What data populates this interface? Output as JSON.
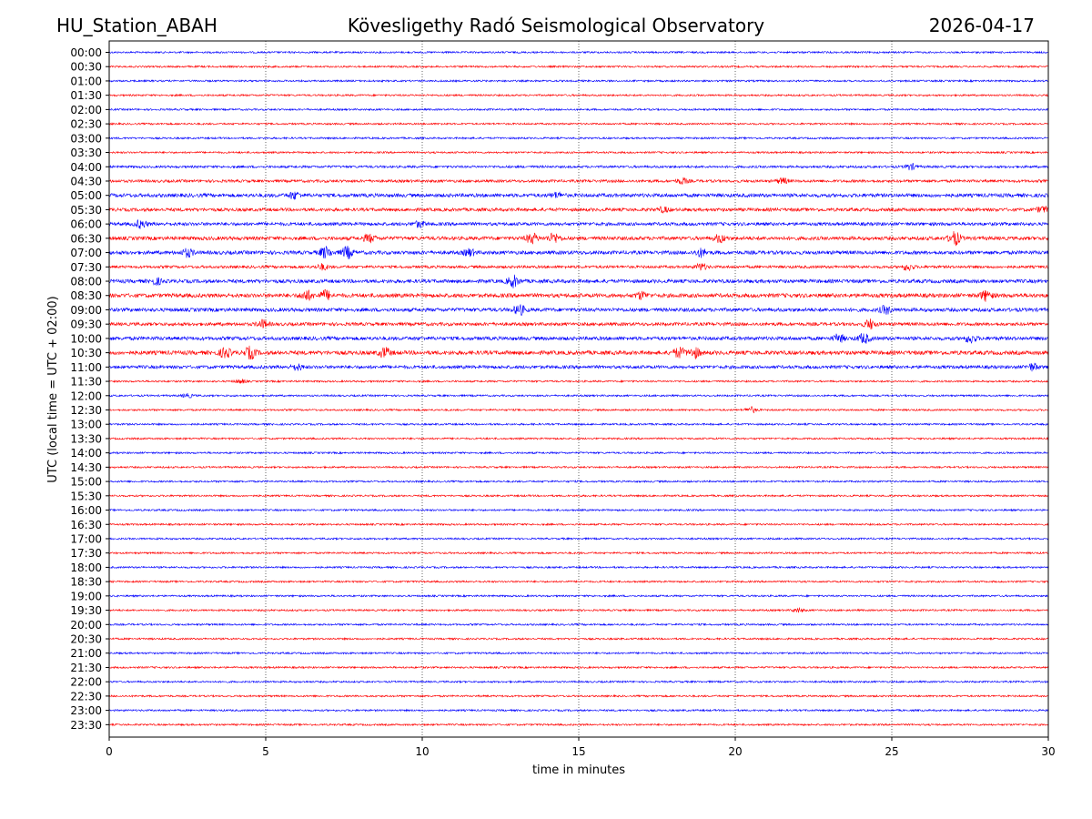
{
  "header": {
    "station": "HU_Station_ABAH",
    "observatory": "Kövesligethy Radó Seismological Observatory",
    "date": "2026-04-17"
  },
  "chart_data": {
    "type": "line",
    "title": "Kövesligethy Radó Seismological Observatory",
    "xlabel": "time in minutes",
    "ylabel": "UTC (local time = UTC + 02:00)",
    "xlim": [
      0,
      30
    ],
    "xticks": [
      0,
      5,
      10,
      15,
      20,
      25,
      30
    ],
    "grid_x": [
      5,
      10,
      15,
      20,
      25
    ],
    "colors": [
      "#0000ff",
      "#ff0000"
    ],
    "rows": [
      "00:00",
      "00:30",
      "01:00",
      "01:30",
      "02:00",
      "02:30",
      "03:00",
      "03:30",
      "04:00",
      "04:30",
      "05:00",
      "05:30",
      "06:00",
      "06:30",
      "07:00",
      "07:30",
      "08:00",
      "08:30",
      "09:00",
      "09:30",
      "10:00",
      "10:30",
      "11:00",
      "11:30",
      "12:00",
      "12:30",
      "13:00",
      "13:30",
      "14:00",
      "14:30",
      "15:00",
      "15:30",
      "16:00",
      "16:30",
      "17:00",
      "17:30",
      "18:00",
      "18:30",
      "19:00",
      "19:30",
      "20:00",
      "20:30",
      "21:00",
      "21:30",
      "22:00",
      "22:30",
      "23:00",
      "23:30"
    ],
    "noise_amplitude": [
      1,
      1,
      1,
      1,
      1,
      1,
      1,
      1,
      1.3,
      1.5,
      2,
      1.8,
      1.8,
      2,
      2,
      1.5,
      2,
      2.2,
      2,
      1.8,
      2,
      2.2,
      1.8,
      1,
      1,
      1,
      1,
      1,
      1,
      1,
      1,
      1,
      1,
      1,
      1,
      1,
      1,
      1,
      1,
      1,
      1,
      1,
      1,
      1,
      1,
      1,
      1,
      1
    ],
    "bursts": [
      {
        "row": "04:00",
        "minute": 25.6,
        "amp": 3
      },
      {
        "row": "04:30",
        "minute": 18.3,
        "amp": 3
      },
      {
        "row": "04:30",
        "minute": 21.5,
        "amp": 3
      },
      {
        "row": "05:00",
        "minute": 5.9,
        "amp": 3.5
      },
      {
        "row": "05:00",
        "minute": 14.3,
        "amp": 2.5
      },
      {
        "row": "05:30",
        "minute": 17.7,
        "amp": 2.5
      },
      {
        "row": "05:30",
        "minute": 29.8,
        "amp": 3
      },
      {
        "row": "06:00",
        "minute": 1,
        "amp": 4
      },
      {
        "row": "06:00",
        "minute": 9.9,
        "amp": 3
      },
      {
        "row": "06:30",
        "minute": 8.3,
        "amp": 4
      },
      {
        "row": "06:30",
        "minute": 13.5,
        "amp": 5
      },
      {
        "row": "06:30",
        "minute": 14.2,
        "amp": 5
      },
      {
        "row": "06:30",
        "minute": 19.5,
        "amp": 4
      },
      {
        "row": "06:30",
        "minute": 27,
        "amp": 7
      },
      {
        "row": "07:00",
        "minute": 2.5,
        "amp": 4
      },
      {
        "row": "07:00",
        "minute": 6.9,
        "amp": 6
      },
      {
        "row": "07:00",
        "minute": 7.6,
        "amp": 6
      },
      {
        "row": "07:00",
        "minute": 11.5,
        "amp": 3.5
      },
      {
        "row": "07:00",
        "minute": 18.9,
        "amp": 4
      },
      {
        "row": "07:30",
        "minute": 6.8,
        "amp": 3
      },
      {
        "row": "07:30",
        "minute": 18.9,
        "amp": 3.5
      },
      {
        "row": "07:30",
        "minute": 25.5,
        "amp": 3.5
      },
      {
        "row": "08:00",
        "minute": 1.5,
        "amp": 3
      },
      {
        "row": "08:00",
        "minute": 12.9,
        "amp": 6
      },
      {
        "row": "08:30",
        "minute": 6.3,
        "amp": 5
      },
      {
        "row": "08:30",
        "minute": 6.9,
        "amp": 5
      },
      {
        "row": "08:30",
        "minute": 17,
        "amp": 3.5
      },
      {
        "row": "08:30",
        "minute": 28,
        "amp": 5
      },
      {
        "row": "09:00",
        "minute": 13.1,
        "amp": 5
      },
      {
        "row": "09:00",
        "minute": 24.8,
        "amp": 4
      },
      {
        "row": "09:30",
        "minute": 4.9,
        "amp": 4
      },
      {
        "row": "09:30",
        "minute": 24.3,
        "amp": 5
      },
      {
        "row": "10:00",
        "minute": 23.3,
        "amp": 4
      },
      {
        "row": "10:00",
        "minute": 24.1,
        "amp": 5
      },
      {
        "row": "10:00",
        "minute": 27.5,
        "amp": 4
      },
      {
        "row": "10:30",
        "minute": 3.7,
        "amp": 5
      },
      {
        "row": "10:30",
        "minute": 4.5,
        "amp": 6
      },
      {
        "row": "10:30",
        "minute": 8.8,
        "amp": 5
      },
      {
        "row": "10:30",
        "minute": 18.2,
        "amp": 5
      },
      {
        "row": "10:30",
        "minute": 18.7,
        "amp": 5
      },
      {
        "row": "11:00",
        "minute": 6,
        "amp": 3
      },
      {
        "row": "11:00",
        "minute": 29.5,
        "amp": 3.5
      },
      {
        "row": "11:30",
        "minute": 4.2,
        "amp": 2
      },
      {
        "row": "12:00",
        "minute": 2.5,
        "amp": 2
      },
      {
        "row": "12:30",
        "minute": 20.5,
        "amp": 3
      },
      {
        "row": "19:30",
        "minute": 22,
        "amp": 2
      }
    ]
  }
}
